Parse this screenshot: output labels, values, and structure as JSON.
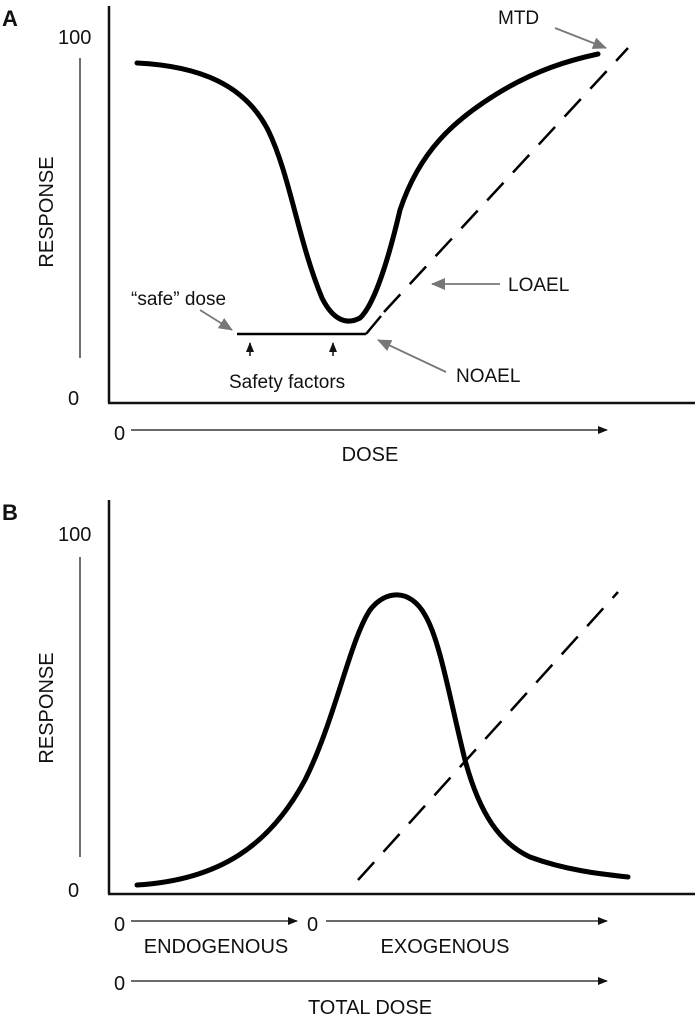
{
  "panel_a": {
    "label": "A",
    "y_axis": {
      "label": "RESPONSE",
      "max_tick": "100",
      "min_tick": "0"
    },
    "x_axis": {
      "label": "DOSE",
      "start_tick": "0"
    },
    "annotations": {
      "mtd": "MTD",
      "loael": "LOAEL",
      "noael": "NOAEL",
      "safe_dose": "“safe” dose",
      "safety_factors": "Safety factors"
    }
  },
  "panel_b": {
    "label": "B",
    "y_axis": {
      "label": "RESPONSE",
      "max_tick": "100",
      "min_tick": "0"
    },
    "x_axes": {
      "endogenous": {
        "label": "ENDOGENOUS",
        "start_tick": "0"
      },
      "exogenous": {
        "label": "EXOGENOUS",
        "start_tick": "0"
      },
      "total": {
        "label": "TOTAL DOSE",
        "start_tick": "0"
      }
    }
  },
  "colors": {
    "curve": "#000000",
    "annotation_arrow": "#777777"
  }
}
